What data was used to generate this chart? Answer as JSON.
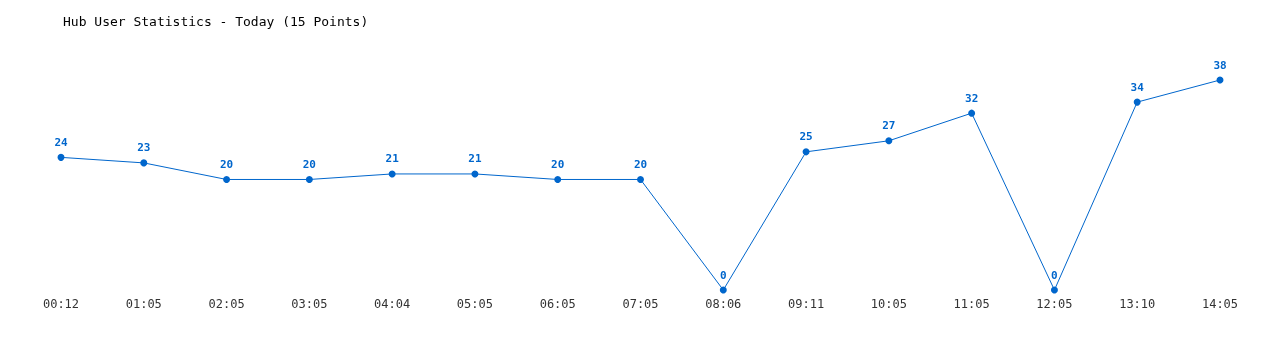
{
  "chart_data": {
    "type": "line",
    "title": "Hub User Statistics - Today (15 Points)",
    "categories": [
      "00:12",
      "01:05",
      "02:05",
      "03:05",
      "04:04",
      "05:05",
      "06:05",
      "07:05",
      "08:06",
      "09:11",
      "10:05",
      "11:05",
      "12:05",
      "13:10",
      "14:05"
    ],
    "series": [
      {
        "color": "#0066cc",
        "values": [
          24,
          23,
          20,
          20,
          21,
          21,
          20,
          20,
          0,
          25,
          27,
          32,
          0,
          34,
          38
        ]
      }
    ],
    "tick_labels": "x",
    "data_labels": true,
    "grid": false,
    "marker": "circle",
    "line_style": "solid"
  }
}
